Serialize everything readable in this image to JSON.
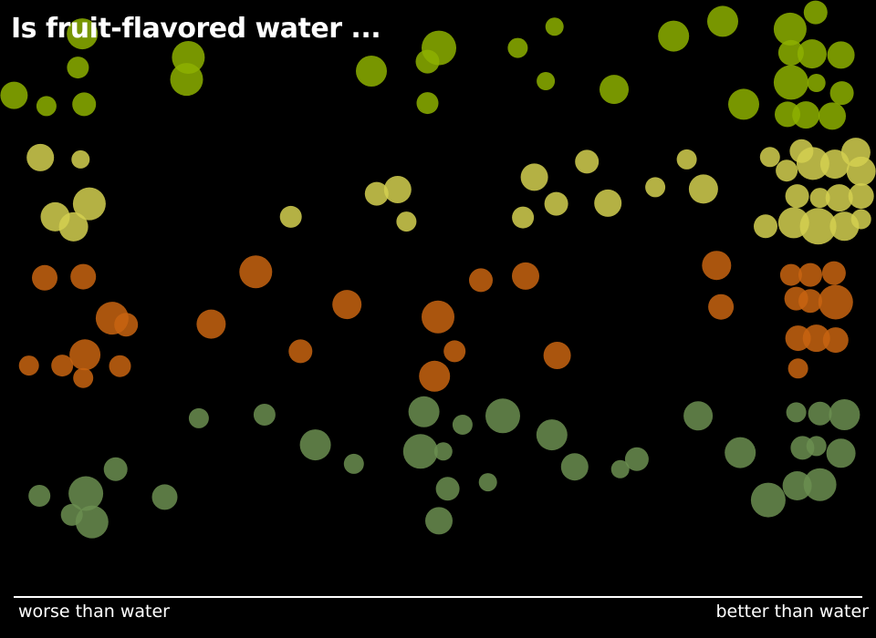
{
  "chart_data": {
    "type": "scatter",
    "title": "Is fruit-flavored water ...",
    "xlabel_left": "worse than water",
    "xlabel_right": "better than water",
    "xlim": [
      0,
      100
    ],
    "ylim": [
      0,
      100
    ],
    "grid": false,
    "colors": {
      "background": "#000000",
      "row1": "#8db000",
      "row2": "#d4d050",
      "row3": "#c86410",
      "row4": "#6b8e50"
    },
    "series": [
      {
        "color": "#8db000",
        "points": [
          [
            9.4,
            94.3,
            17
          ],
          [
            1.6,
            83.9,
            15
          ],
          [
            5.3,
            82.1,
            11
          ],
          [
            8.9,
            88.6,
            12
          ],
          [
            9.6,
            82.4,
            13
          ],
          [
            21.5,
            90.3,
            18
          ],
          [
            21.3,
            86.6,
            18
          ],
          [
            42.4,
            88.0,
            17
          ],
          [
            50.1,
            91.9,
            19
          ],
          [
            48.8,
            89.6,
            13
          ],
          [
            48.8,
            82.6,
            12
          ],
          [
            59.1,
            91.9,
            11
          ],
          [
            63.3,
            95.5,
            10
          ],
          [
            62.3,
            86.3,
            10
          ],
          [
            70.1,
            84.9,
            16
          ],
          [
            76.9,
            93.9,
            17
          ],
          [
            82.5,
            96.4,
            17
          ],
          [
            84.9,
            82.4,
            17
          ],
          [
            90.2,
            95.1,
            18
          ],
          [
            93.1,
            97.9,
            13
          ],
          [
            90.3,
            91.1,
            14
          ],
          [
            92.7,
            90.9,
            16
          ],
          [
            96.0,
            90.7,
            15
          ],
          [
            90.3,
            86.1,
            19
          ],
          [
            93.2,
            86.0,
            10
          ],
          [
            96.1,
            84.3,
            13
          ],
          [
            89.9,
            80.7,
            14
          ],
          [
            92.0,
            80.6,
            15
          ],
          [
            95.0,
            80.4,
            15
          ]
        ]
      },
      {
        "color": "#d4d050",
        "points": [
          [
            4.6,
            73.4,
            15
          ],
          [
            9.2,
            73.1,
            10
          ],
          [
            10.2,
            65.6,
            18
          ],
          [
            6.3,
            63.4,
            16
          ],
          [
            8.4,
            61.7,
            16
          ],
          [
            33.2,
            63.4,
            12
          ],
          [
            43.0,
            67.3,
            13
          ],
          [
            45.4,
            68.0,
            15
          ],
          [
            46.4,
            62.6,
            11
          ],
          [
            59.7,
            63.3,
            12
          ],
          [
            61.0,
            70.1,
            15
          ],
          [
            63.5,
            65.6,
            13
          ],
          [
            67.0,
            72.7,
            13
          ],
          [
            69.4,
            65.7,
            15
          ],
          [
            74.8,
            68.4,
            11
          ],
          [
            78.4,
            73.1,
            11
          ],
          [
            80.3,
            68.1,
            16
          ],
          [
            87.9,
            73.5,
            11
          ],
          [
            89.8,
            71.2,
            12
          ],
          [
            91.5,
            74.5,
            13
          ],
          [
            92.8,
            72.4,
            18
          ],
          [
            95.3,
            72.3,
            16
          ],
          [
            97.7,
            74.3,
            16
          ],
          [
            98.3,
            71.1,
            16
          ],
          [
            91.0,
            66.9,
            13
          ],
          [
            93.6,
            66.6,
            11
          ],
          [
            95.8,
            66.6,
            15
          ],
          [
            98.3,
            66.9,
            14
          ],
          [
            87.4,
            61.8,
            13
          ],
          [
            90.6,
            62.4,
            17
          ],
          [
            93.4,
            61.8,
            20
          ],
          [
            96.4,
            61.8,
            16
          ],
          [
            98.3,
            63.0,
            11
          ]
        ]
      },
      {
        "color": "#c86410",
        "points": [
          [
            5.1,
            53.1,
            14
          ],
          [
            9.5,
            53.3,
            14
          ],
          [
            12.8,
            46.3,
            18
          ],
          [
            14.4,
            45.2,
            13
          ],
          [
            29.2,
            54.1,
            18
          ],
          [
            24.1,
            45.3,
            16
          ],
          [
            39.6,
            48.6,
            16
          ],
          [
            50.0,
            46.5,
            18
          ],
          [
            54.9,
            52.7,
            13
          ],
          [
            60.0,
            53.4,
            15
          ],
          [
            3.3,
            38.3,
            11
          ],
          [
            7.1,
            38.3,
            12
          ],
          [
            9.7,
            40.1,
            17
          ],
          [
            13.7,
            38.2,
            12
          ],
          [
            9.5,
            36.2,
            11
          ],
          [
            34.3,
            40.7,
            13
          ],
          [
            51.9,
            40.7,
            12
          ],
          [
            49.6,
            36.5,
            17
          ],
          [
            63.6,
            40.0,
            15
          ],
          [
            81.8,
            55.2,
            16
          ],
          [
            82.3,
            48.2,
            14
          ],
          [
            90.3,
            53.6,
            12
          ],
          [
            92.5,
            53.6,
            13
          ],
          [
            95.2,
            53.9,
            13
          ],
          [
            90.9,
            49.6,
            13
          ],
          [
            92.5,
            49.2,
            13
          ],
          [
            95.4,
            49.0,
            19
          ],
          [
            91.1,
            42.9,
            14
          ],
          [
            93.2,
            42.9,
            15
          ],
          [
            95.4,
            42.6,
            14
          ],
          [
            91.1,
            37.8,
            11
          ]
        ]
      },
      {
        "color": "#6b8e50",
        "points": [
          [
            22.7,
            29.4,
            11
          ],
          [
            30.2,
            30.0,
            12
          ],
          [
            48.4,
            30.5,
            17
          ],
          [
            52.8,
            28.3,
            11
          ],
          [
            57.4,
            29.8,
            19
          ],
          [
            63.0,
            26.6,
            17
          ],
          [
            36.0,
            24.9,
            17
          ],
          [
            40.4,
            21.7,
            11
          ],
          [
            48.0,
            23.8,
            19
          ],
          [
            50.6,
            23.8,
            10
          ],
          [
            13.2,
            20.8,
            13
          ],
          [
            4.5,
            16.3,
            12
          ],
          [
            9.8,
            16.7,
            19
          ],
          [
            8.2,
            13.1,
            12
          ],
          [
            10.5,
            11.9,
            18
          ],
          [
            18.8,
            16.1,
            14
          ],
          [
            51.1,
            17.5,
            13
          ],
          [
            55.7,
            18.6,
            10
          ],
          [
            65.6,
            21.2,
            15
          ],
          [
            72.7,
            22.5,
            13
          ],
          [
            70.8,
            20.8,
            10
          ],
          [
            50.1,
            12.1,
            15
          ],
          [
            79.7,
            29.8,
            16
          ],
          [
            84.5,
            23.6,
            17
          ],
          [
            87.7,
            15.6,
            19
          ],
          [
            90.9,
            30.4,
            11
          ],
          [
            93.6,
            30.2,
            13
          ],
          [
            96.4,
            30.0,
            17
          ],
          [
            91.6,
            24.4,
            13
          ],
          [
            93.2,
            24.7,
            11
          ],
          [
            96.0,
            23.5,
            16
          ],
          [
            91.0,
            18.0,
            16
          ],
          [
            93.6,
            18.2,
            18
          ]
        ]
      }
    ]
  }
}
